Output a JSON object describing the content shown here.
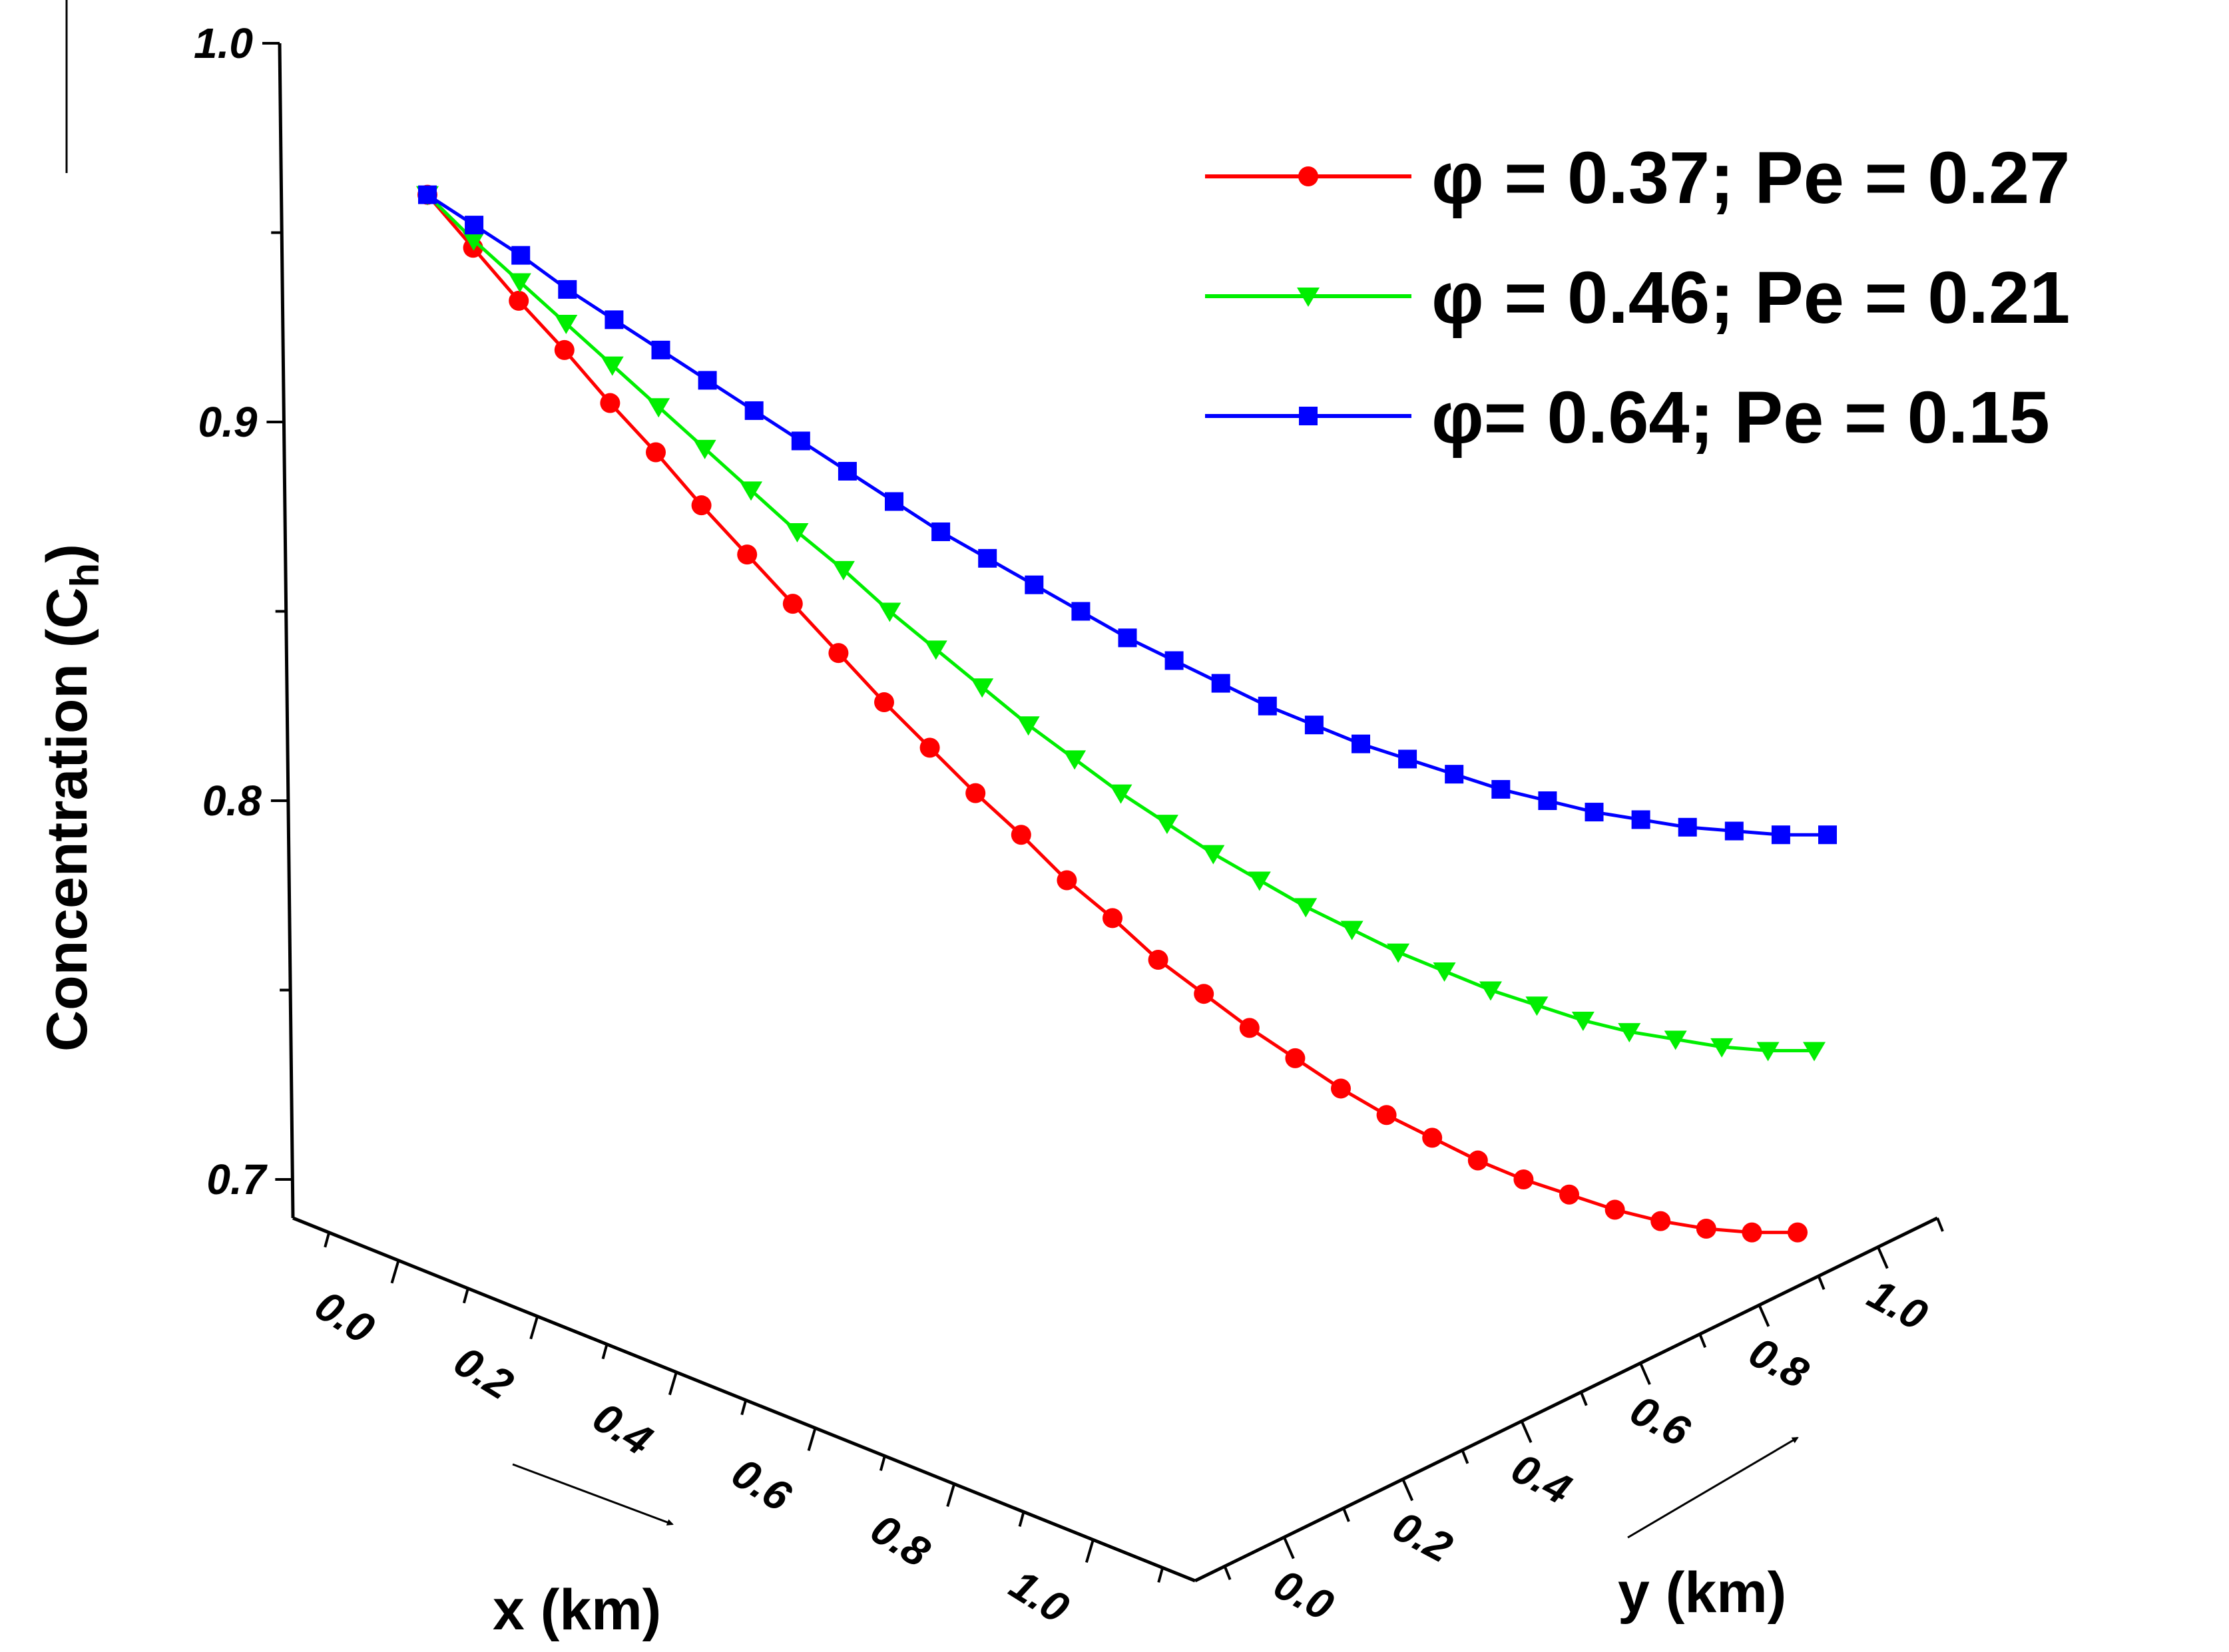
{
  "chart_data": {
    "type": "line",
    "title": "",
    "zlabel_text": "Concentration (C",
    "zlabel_sub": "h",
    "zlabel_close": ")",
    "xlabel": "x (km)",
    "ylabel": "y (km)",
    "zlim": [
      0.7,
      1.0
    ],
    "z_ticks": [
      "1.0",
      "0.9",
      "0.8",
      "0.7"
    ],
    "x_ticks": [
      "0.0",
      "0.2",
      "0.4",
      "0.6",
      "0.8",
      "1.0"
    ],
    "y_ticks": [
      "0.0",
      "0.2",
      "0.4",
      "0.6",
      "0.8",
      "1.0"
    ],
    "legend_position": "top-right",
    "series": [
      {
        "name": "φ = 0.37; Pe = 0.27",
        "color": "#ff0000",
        "marker": "circle",
        "values": [
          0.96,
          0.946,
          0.932,
          0.919,
          0.905,
          0.892,
          0.878,
          0.865,
          0.852,
          0.839,
          0.826,
          0.814,
          0.802,
          0.791,
          0.779,
          0.769,
          0.758,
          0.749,
          0.74,
          0.732,
          0.724,
          0.717,
          0.711,
          0.705,
          0.7,
          0.696,
          0.692,
          0.689,
          0.687,
          0.686,
          0.686
        ]
      },
      {
        "name": "φ = 0.46; Pe = 0.21",
        "color": "#00ee00",
        "marker": "triangle-down",
        "values": [
          0.96,
          0.948,
          0.937,
          0.926,
          0.915,
          0.904,
          0.893,
          0.882,
          0.871,
          0.861,
          0.85,
          0.84,
          0.83,
          0.82,
          0.811,
          0.802,
          0.794,
          0.786,
          0.779,
          0.772,
          0.766,
          0.76,
          0.755,
          0.75,
          0.746,
          0.742,
          0.739,
          0.737,
          0.735,
          0.734,
          0.734
        ]
      },
      {
        "name": "φ= 0.64; Pe = 0.15",
        "color": "#0000ff",
        "marker": "square",
        "values": [
          0.96,
          0.952,
          0.944,
          0.935,
          0.927,
          0.919,
          0.911,
          0.903,
          0.895,
          0.887,
          0.879,
          0.871,
          0.864,
          0.857,
          0.85,
          0.843,
          0.837,
          0.831,
          0.825,
          0.82,
          0.815,
          0.811,
          0.807,
          0.803,
          0.8,
          0.797,
          0.795,
          0.793,
          0.792,
          0.791,
          0.791
        ]
      }
    ]
  }
}
